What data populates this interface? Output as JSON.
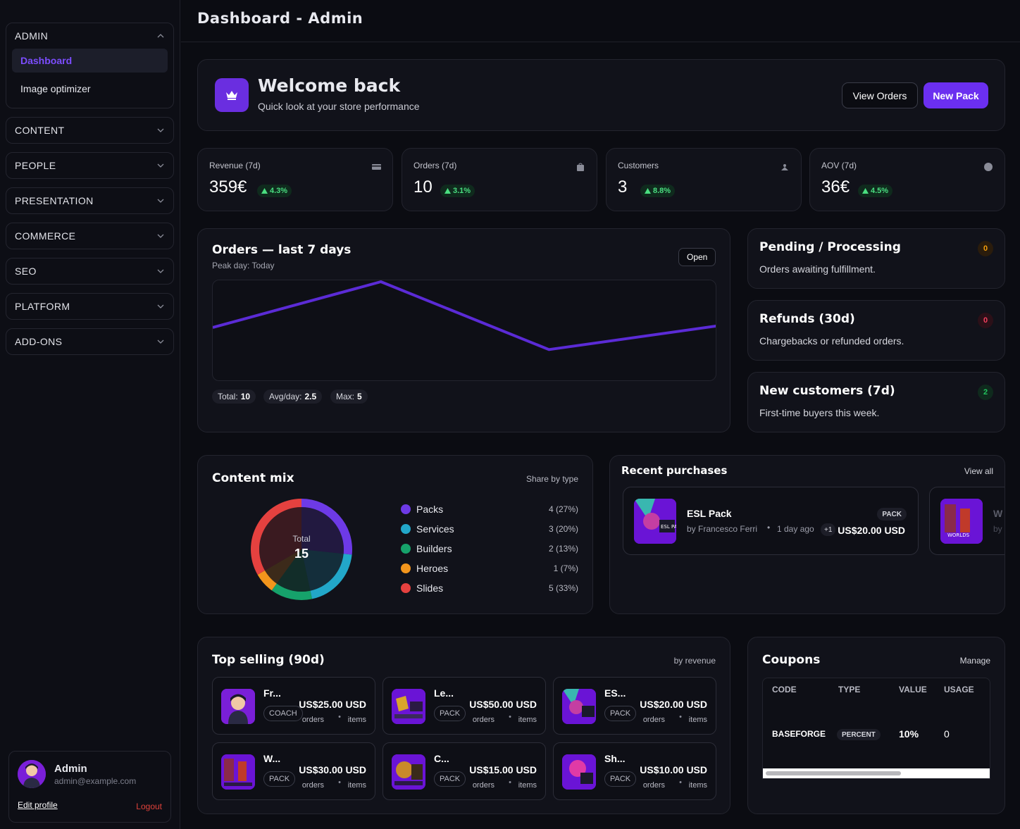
{
  "page_title": "Dashboard - Admin",
  "sidebar": {
    "admin_group": {
      "label": "ADMIN",
      "items": [
        {
          "label": "Dashboard",
          "active": true
        },
        {
          "label": "Image optimizer",
          "active": false
        }
      ]
    },
    "groups": [
      "CONTENT",
      "PEOPLE",
      "PRESENTATION",
      "COMMERCE",
      "SEO",
      "PLATFORM",
      "ADD-ONS"
    ],
    "user": {
      "name": "Admin",
      "email": "admin@example.com",
      "edit_label": "Edit profile",
      "logout_label": "Logout"
    }
  },
  "welcome": {
    "icon": "crown-icon",
    "title": "Welcome back",
    "subtitle": "Quick look at your store performance",
    "view_orders_label": "View Orders",
    "new_pack_label": "New Pack"
  },
  "kpis": [
    {
      "label": "Revenue (7d)",
      "value": "359€",
      "delta": "4.3%",
      "icon": "card-icon"
    },
    {
      "label": "Orders (7d)",
      "value": "10",
      "delta": "3.1%",
      "icon": "bag-icon"
    },
    {
      "label": "Customers",
      "value": "3",
      "delta": "8.8%",
      "icon": "user-icon"
    },
    {
      "label": "AOV (7d)",
      "value": "36€",
      "delta": "4.5%",
      "icon": "circle-icon"
    }
  ],
  "orders_chart": {
    "title": "Orders — last 7 days",
    "subtitle": "Peak day: Today",
    "open_label": "Open",
    "stats": [
      {
        "label": "Total:",
        "value": "10"
      },
      {
        "label": "Avg/day:",
        "value": "2.5"
      },
      {
        "label": "Max:",
        "value": "5"
      }
    ]
  },
  "chart_data": {
    "type": "line",
    "x": [
      1,
      2,
      3,
      4
    ],
    "values": [
      2.1,
      5,
      0.7,
      2.2
    ],
    "ylim": [
      0,
      5
    ],
    "color": "#5b2bd6",
    "grid": false
  },
  "side_cards": [
    {
      "title": "Pending / Processing",
      "desc": "Orders awaiting fulfillment.",
      "count": "0",
      "tone": "#f59e0b",
      "bg": "#2a1c0c"
    },
    {
      "title": "Refunds (30d)",
      "desc": "Chargebacks or refunded orders.",
      "count": "0",
      "tone": "#f43f5e",
      "bg": "#2b1018"
    },
    {
      "title": "New customers (7d)",
      "desc": "First-time buyers this week.",
      "count": "2",
      "tone": "#22c55e",
      "bg": "#0f2a1d"
    }
  ],
  "content_mix": {
    "title": "Content mix",
    "subtitle": "Share by type",
    "total_label": "Total",
    "total": "15",
    "items": [
      {
        "label": "Packs",
        "value": "4 (27%)",
        "count": 4,
        "color": "#6d3ae6"
      },
      {
        "label": "Services",
        "value": "3 (20%)",
        "count": 3,
        "color": "#22a7c9"
      },
      {
        "label": "Builders",
        "value": "2 (13%)",
        "count": 2,
        "color": "#16a26b"
      },
      {
        "label": "Heroes",
        "value": "1 (7%)",
        "count": 1,
        "color": "#f2951c"
      },
      {
        "label": "Slides",
        "value": "5 (33%)",
        "count": 5,
        "color": "#e5413f"
      }
    ]
  },
  "recent_purchases": {
    "title": "Recent purchases",
    "view_all_label": "View all",
    "items": [
      {
        "name": "ESL Pack",
        "by": "by Francesco Ferri",
        "when": "1 day ago",
        "extra": "+1",
        "tag": "PACK",
        "price": "US$20.00 USD"
      },
      {
        "name": "W",
        "by": "by"
      }
    ]
  },
  "top_selling": {
    "title": "Top selling (90d)",
    "subtitle": "by revenue",
    "orders_label": "orders",
    "items_label": "items",
    "products": [
      {
        "name": "Fr...",
        "tag": "COACH",
        "price": "US$25.00 USD"
      },
      {
        "name": "Le...",
        "tag": "PACK",
        "price": "US$50.00 USD"
      },
      {
        "name": "ES...",
        "tag": "PACK",
        "price": "US$20.00 USD"
      },
      {
        "name": "W...",
        "tag": "PACK",
        "price": "US$30.00 USD"
      },
      {
        "name": "C...",
        "tag": "PACK",
        "price": "US$15.00 USD"
      },
      {
        "name": "Sh...",
        "tag": "PACK",
        "price": "US$10.00 USD"
      }
    ]
  },
  "coupons": {
    "title": "Coupons",
    "manage_label": "Manage",
    "columns": [
      "CODE",
      "TYPE",
      "VALUE",
      "USAGE"
    ],
    "rows": [
      {
        "code": "BASEFORGE",
        "type": "PERCENT",
        "value": "10%",
        "usage": "0"
      }
    ]
  }
}
